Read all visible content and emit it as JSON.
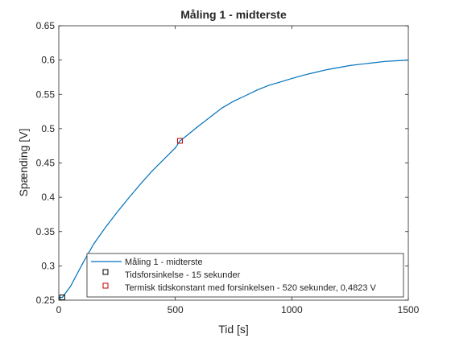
{
  "chart_data": {
    "type": "line",
    "title": "Måling 1 - midterste",
    "xlabel": "Tid [s]",
    "ylabel": "Spænding [V]",
    "xlim": [
      0,
      1500
    ],
    "ylim": [
      0.25,
      0.65
    ],
    "xticks": [
      0,
      500,
      1000,
      1500
    ],
    "yticks": [
      0.25,
      0.3,
      0.35,
      0.4,
      0.45,
      0.5,
      0.55,
      0.6,
      0.65
    ],
    "xtick_labels": [
      "0",
      "500",
      "1000",
      "1500"
    ],
    "ytick_labels": [
      "0.25",
      "0.3",
      "0.35",
      "0.4",
      "0.45",
      "0.5",
      "0.55",
      "0.6",
      "0.65"
    ],
    "grid": false,
    "legend_position": "bottom-right",
    "series": [
      {
        "name": "Måling 1 - midterste",
        "kind": "line",
        "color": "#0072BD",
        "x": [
          0,
          15,
          50,
          100,
          150,
          200,
          250,
          300,
          350,
          400,
          450,
          500,
          520,
          550,
          600,
          650,
          700,
          750,
          800,
          850,
          900,
          950,
          1000,
          1050,
          1100,
          1150,
          1200,
          1250,
          1300,
          1350,
          1400,
          1450,
          1500
        ],
        "y": [
          0.254,
          0.254,
          0.27,
          0.302,
          0.332,
          0.356,
          0.378,
          0.399,
          0.419,
          0.438,
          0.455,
          0.472,
          0.4823,
          0.49,
          0.504,
          0.517,
          0.53,
          0.54,
          0.548,
          0.556,
          0.563,
          0.568,
          0.573,
          0.578,
          0.582,
          0.586,
          0.589,
          0.592,
          0.594,
          0.596,
          0.598,
          0.599,
          0.6
        ]
      },
      {
        "name": "Tidsforsinkelse - 15 sekunder",
        "kind": "marker",
        "color": "#000000",
        "x": [
          15
        ],
        "y": [
          0.254
        ]
      },
      {
        "name": "Termisk tidskonstant med forsinkelsen - 520 sekunder, 0,4823 V",
        "kind": "marker",
        "color": "#C00000",
        "x": [
          520
        ],
        "y": [
          0.4823
        ]
      }
    ]
  }
}
